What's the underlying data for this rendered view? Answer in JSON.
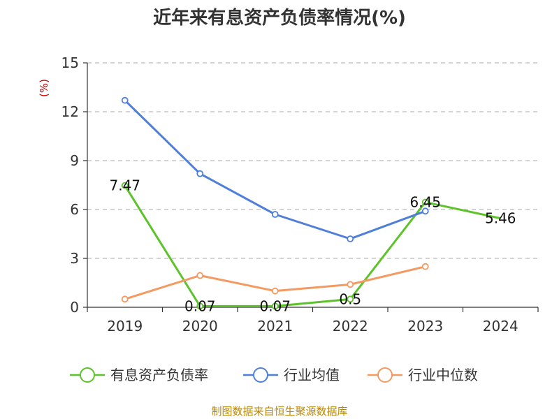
{
  "chart_data": {
    "type": "line",
    "title": "近年来有息资产负债率情况(%)",
    "y_unit": "(%)",
    "categories": [
      "2019",
      "2020",
      "2021",
      "2022",
      "2023",
      "2024"
    ],
    "ylim": [
      0,
      15
    ],
    "yticks": [
      "0",
      "3",
      "6",
      "9",
      "12",
      "15"
    ],
    "grid": true,
    "legend_position": "bottom",
    "series": [
      {
        "name": "有息资产负债率",
        "color": "#5cc32a",
        "values": [
          7.47,
          0.07,
          0.07,
          0.5,
          6.45,
          5.46
        ],
        "labels": [
          "7.47",
          "0.07",
          "0.07",
          "0.5",
          "6.45",
          "5.46"
        ]
      },
      {
        "name": "行业均值",
        "color": "#4f7fd8",
        "values": [
          12.7,
          8.2,
          5.7,
          4.2,
          5.9,
          null
        ]
      },
      {
        "name": "行业中位数",
        "color": "#f39a62",
        "values": [
          0.5,
          1.95,
          1.0,
          1.4,
          2.5,
          null
        ]
      }
    ],
    "source": "制图数据来自恒生聚源数据库"
  }
}
